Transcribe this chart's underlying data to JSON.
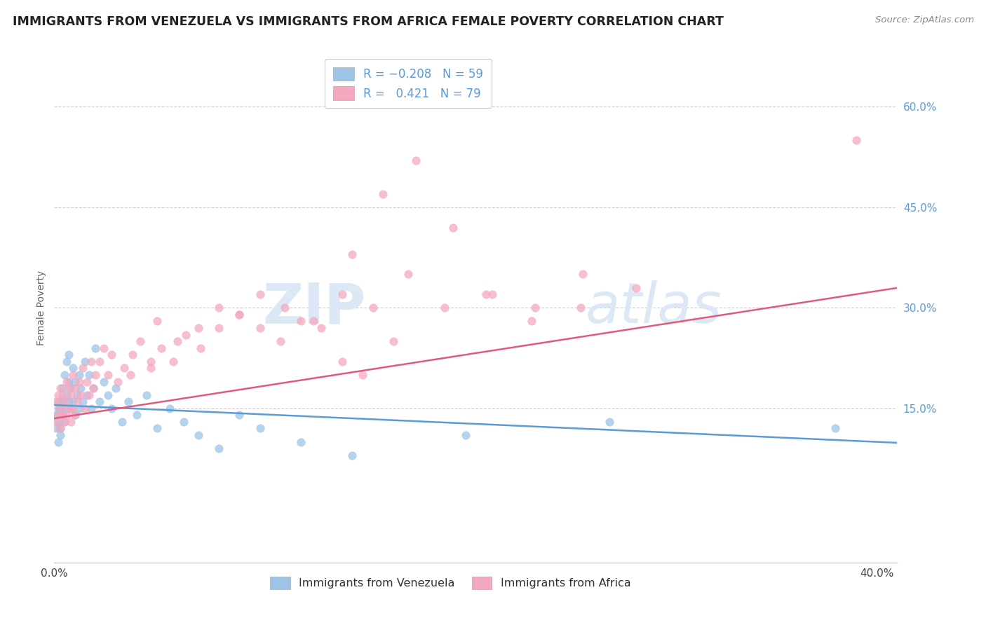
{
  "title": "IMMIGRANTS FROM VENEZUELA VS IMMIGRANTS FROM AFRICA FEMALE POVERTY CORRELATION CHART",
  "source": "Source: ZipAtlas.com",
  "ylabel": "Female Poverty",
  "xlim": [
    0.0,
    0.41
  ],
  "ylim": [
    -0.08,
    0.68
  ],
  "y_ticks_right": [
    0.15,
    0.3,
    0.45,
    0.6
  ],
  "y_tick_labels_right": [
    "15.0%",
    "30.0%",
    "45.0%",
    "60.0%"
  ],
  "x_ticks": [
    0.0,
    0.4
  ],
  "x_tick_labels": [
    "0.0%",
    "40.0%"
  ],
  "legend_series": [
    "Immigrants from Venezuela",
    "Immigrants from Africa"
  ],
  "venezuela_color": "#9ec4e8",
  "africa_color": "#f4a8be",
  "venezuela_line_color": "#5b9bd5",
  "africa_line_color": "#e05a7a",
  "watermark_color": "#dce8f5",
  "venezuela_R": -0.208,
  "venezuela_N": 59,
  "africa_R": 0.421,
  "africa_N": 79,
  "venezuela_points_x": [
    0.001,
    0.001,
    0.002,
    0.002,
    0.002,
    0.002,
    0.003,
    0.003,
    0.003,
    0.003,
    0.004,
    0.004,
    0.004,
    0.005,
    0.005,
    0.005,
    0.006,
    0.006,
    0.007,
    0.007,
    0.007,
    0.008,
    0.008,
    0.009,
    0.009,
    0.01,
    0.01,
    0.011,
    0.012,
    0.012,
    0.013,
    0.014,
    0.015,
    0.016,
    0.017,
    0.018,
    0.019,
    0.02,
    0.022,
    0.024,
    0.026,
    0.028,
    0.03,
    0.033,
    0.036,
    0.04,
    0.045,
    0.05,
    0.056,
    0.063,
    0.07,
    0.08,
    0.09,
    0.1,
    0.12,
    0.145,
    0.2,
    0.27,
    0.38
  ],
  "venezuela_points_y": [
    0.14,
    0.12,
    0.15,
    0.13,
    0.1,
    0.16,
    0.14,
    0.12,
    0.15,
    0.11,
    0.16,
    0.14,
    0.18,
    0.13,
    0.15,
    0.2,
    0.17,
    0.22,
    0.16,
    0.19,
    0.23,
    0.15,
    0.18,
    0.16,
    0.21,
    0.14,
    0.19,
    0.17,
    0.15,
    0.2,
    0.18,
    0.16,
    0.22,
    0.17,
    0.2,
    0.15,
    0.18,
    0.24,
    0.16,
    0.19,
    0.17,
    0.15,
    0.18,
    0.13,
    0.16,
    0.14,
    0.17,
    0.12,
    0.15,
    0.13,
    0.11,
    0.09,
    0.14,
    0.12,
    0.1,
    0.08,
    0.11,
    0.13,
    0.12
  ],
  "africa_points_x": [
    0.001,
    0.001,
    0.002,
    0.002,
    0.003,
    0.003,
    0.003,
    0.004,
    0.004,
    0.005,
    0.005,
    0.006,
    0.006,
    0.007,
    0.007,
    0.008,
    0.008,
    0.009,
    0.009,
    0.01,
    0.01,
    0.011,
    0.012,
    0.013,
    0.014,
    0.015,
    0.016,
    0.017,
    0.018,
    0.019,
    0.02,
    0.022,
    0.024,
    0.026,
    0.028,
    0.031,
    0.034,
    0.038,
    0.042,
    0.047,
    0.052,
    0.058,
    0.064,
    0.071,
    0.08,
    0.09,
    0.1,
    0.112,
    0.126,
    0.14,
    0.155,
    0.172,
    0.19,
    0.21,
    0.232,
    0.256,
    0.283,
    0.145,
    0.16,
    0.176,
    0.194,
    0.213,
    0.234,
    0.257,
    0.05,
    0.06,
    0.07,
    0.08,
    0.09,
    0.1,
    0.11,
    0.12,
    0.13,
    0.14,
    0.15,
    0.165,
    0.037,
    0.047,
    0.39
  ],
  "africa_points_y": [
    0.13,
    0.16,
    0.14,
    0.17,
    0.12,
    0.15,
    0.18,
    0.14,
    0.17,
    0.13,
    0.16,
    0.14,
    0.19,
    0.15,
    0.18,
    0.13,
    0.17,
    0.15,
    0.2,
    0.14,
    0.18,
    0.16,
    0.19,
    0.17,
    0.21,
    0.15,
    0.19,
    0.17,
    0.22,
    0.18,
    0.2,
    0.22,
    0.24,
    0.2,
    0.23,
    0.19,
    0.21,
    0.23,
    0.25,
    0.21,
    0.24,
    0.22,
    0.26,
    0.24,
    0.27,
    0.29,
    0.27,
    0.3,
    0.28,
    0.32,
    0.3,
    0.35,
    0.3,
    0.32,
    0.28,
    0.3,
    0.33,
    0.38,
    0.47,
    0.52,
    0.42,
    0.32,
    0.3,
    0.35,
    0.28,
    0.25,
    0.27,
    0.3,
    0.29,
    0.32,
    0.25,
    0.28,
    0.27,
    0.22,
    0.2,
    0.25,
    0.2,
    0.22,
    0.55
  ]
}
